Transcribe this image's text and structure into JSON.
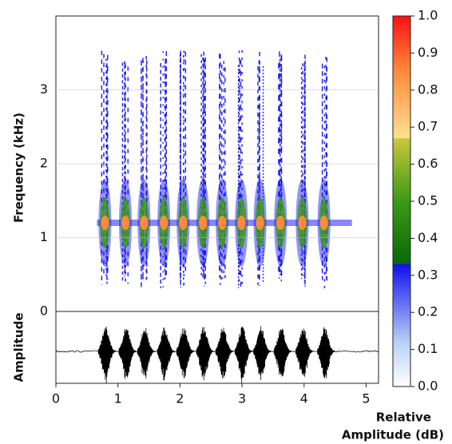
{
  "chart_data": {
    "type": "spectrogram",
    "y_label": "Frequency (kHz)",
    "amplitude_label": "Amplitude",
    "colorbar_label": [
      "Relative",
      "Amplitude (dB)"
    ],
    "x": [
      0.79,
      1.12,
      1.42,
      1.74,
      2.05,
      2.37,
      2.68,
      2.99,
      3.29,
      3.62,
      3.97,
      4.32
    ],
    "values": [
      1.2,
      1.2,
      1.2,
      1.2,
      1.2,
      1.2,
      1.2,
      1.2,
      1.2,
      1.2,
      1.2,
      1.2
    ],
    "xlim": [
      0,
      5.2
    ],
    "xticks": [
      0,
      1,
      2,
      3,
      4,
      5
    ],
    "ylim": [
      0,
      4
    ],
    "yticks": [
      0,
      1,
      2,
      3
    ],
    "grid": true,
    "clim": [
      0,
      1
    ],
    "cticks": [
      {
        "value": 0,
        "label": "0.0"
      },
      {
        "value": 0.1,
        "label": "0.1"
      },
      {
        "value": 0.2,
        "label": "0.2"
      },
      {
        "value": 0.3,
        "label": "0.3"
      },
      {
        "value": 0.4,
        "label": "0.4"
      },
      {
        "value": 0.5,
        "label": "0.5"
      },
      {
        "value": 0.6,
        "label": "0.6"
      },
      {
        "value": 0.7,
        "label": "0.7"
      },
      {
        "value": 0.8,
        "label": "0.8"
      },
      {
        "value": 0.9,
        "label": "0.9"
      },
      {
        "value": 1,
        "label": "1.0"
      }
    ],
    "colorscale": [
      {
        "stop": 0,
        "color": "#ffffff"
      },
      {
        "stop": 0.12,
        "color": "#b8d0f4"
      },
      {
        "stop": 0.329,
        "color": "#1010f0"
      },
      {
        "stop": 0.331,
        "color": "#086808"
      },
      {
        "stop": 0.5,
        "color": "#3c9a14"
      },
      {
        "stop": 0.669,
        "color": "#c8c83c"
      },
      {
        "stop": 0.671,
        "color": "#ffe090"
      },
      {
        "stop": 0.85,
        "color": "#ff8a3c"
      },
      {
        "stop": 1,
        "color": "#ff1010"
      }
    ]
  }
}
